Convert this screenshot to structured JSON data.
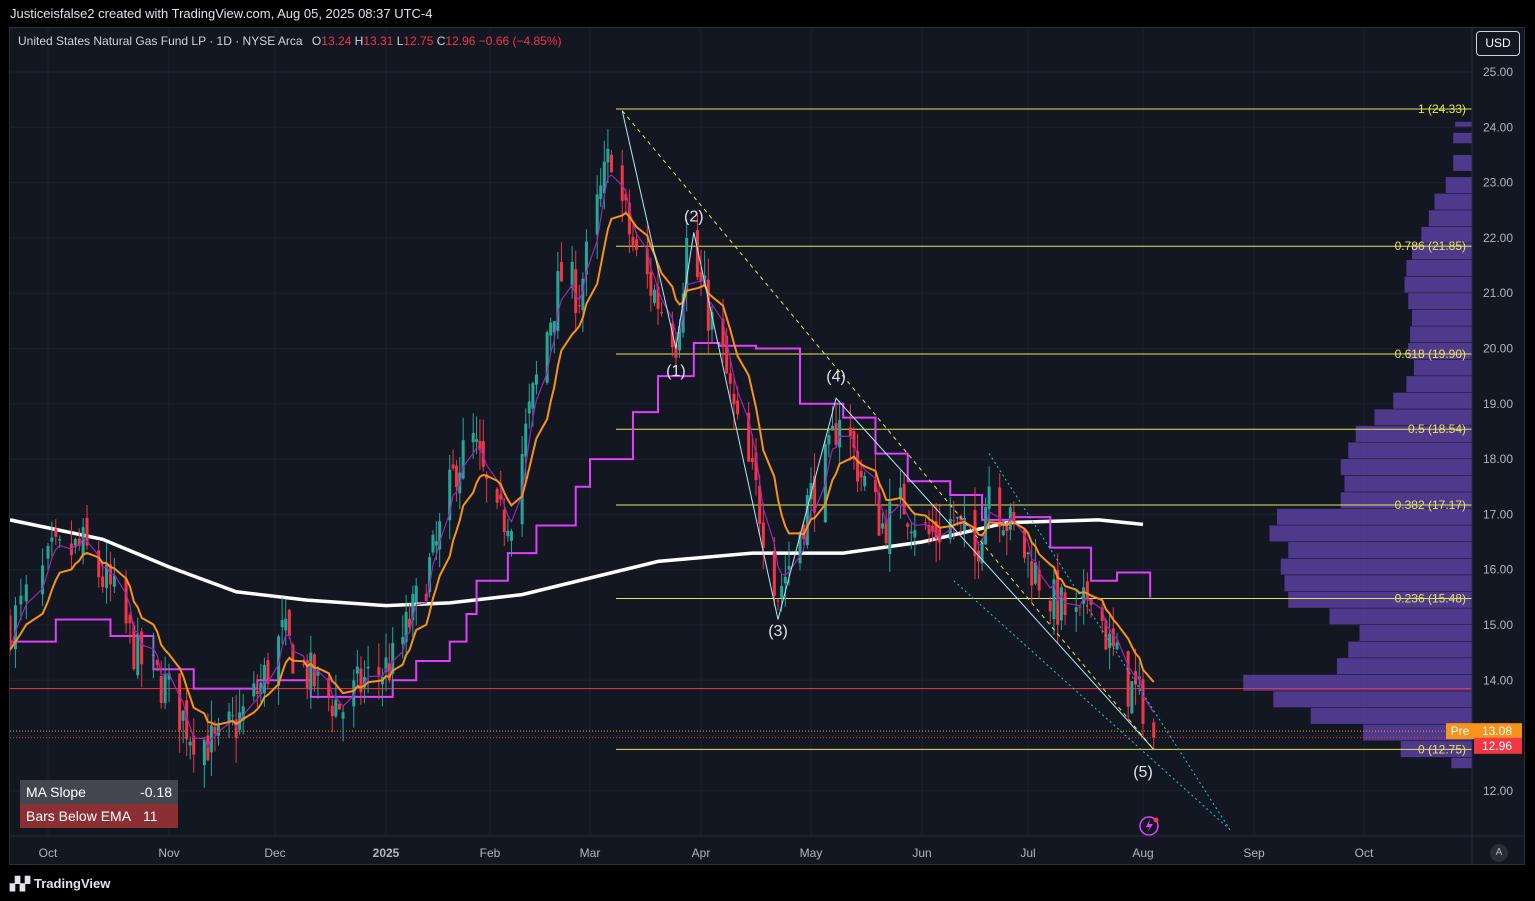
{
  "header": {
    "text": "Justiceisfalse2 created with TradingView.com, Aug 05, 2025 08:37 UTC-4"
  },
  "legend": {
    "symbol": "United States Natural Gas Fund LP · 1D · NYSE Arca",
    "o_label": "O",
    "o": "13.24",
    "h_label": "H",
    "h": "13.31",
    "l_label": "L",
    "l": "12.75",
    "c_label": "C",
    "c": "12.96",
    "change": "−0.66 (−4.85%)"
  },
  "currency_button": "USD",
  "footer": {
    "brand": "TradingView"
  },
  "auto_button": "A",
  "stats": {
    "ma_slope_label": "MA Slope",
    "ma_slope": "-0.18",
    "bars_below_label": "Bars Below EMA",
    "bars_below": "11"
  },
  "colors": {
    "background": "#131722",
    "up": "#26a69a",
    "down": "#f23645",
    "ema": "#f7931a",
    "ma200": "#ffffff",
    "step": "#e040fb",
    "fib": "#e6e35a",
    "volume_profile": "#5b3fa0",
    "support": "#f23645"
  },
  "chart_data": {
    "type": "candlestick",
    "price_axis": {
      "ticks": [
        "25.00",
        "24.00",
        "23.00",
        "22.00",
        "21.00",
        "20.00",
        "19.00",
        "18.00",
        "17.00",
        "16.00",
        "15.00",
        "14.00",
        "13.00",
        "12.00"
      ],
      "range": [
        11.2,
        25.8
      ]
    },
    "time_axis": {
      "ticks": [
        "Oct",
        "Nov",
        "Dec",
        "2025",
        "Feb",
        "Mar",
        "Apr",
        "May",
        "Jun",
        "Jul",
        "Aug",
        "Sep",
        "Oct"
      ]
    },
    "price_labels": [
      {
        "label": "Pre",
        "value": "13.08",
        "color": "#f7931a"
      },
      {
        "label": "",
        "value": "12.96",
        "color": "#f23645"
      }
    ],
    "fib_levels": [
      {
        "ratio": "1",
        "price": 24.33,
        "text": "1 (24.33)"
      },
      {
        "ratio": "0.786",
        "price": 21.85,
        "text": "0.786 (21.85)"
      },
      {
        "ratio": "0.618",
        "price": 19.9,
        "text": "0.618 (19.90)"
      },
      {
        "ratio": "0.5",
        "price": 18.54,
        "text": "0.5 (18.54)"
      },
      {
        "ratio": "0.382",
        "price": 17.17,
        "text": "0.382 (17.17)"
      },
      {
        "ratio": "0.236",
        "price": 15.48,
        "text": "0.236 (15.48)"
      },
      {
        "ratio": "0",
        "price": 12.75,
        "text": "0 (12.75)"
      }
    ],
    "wave_labels": [
      {
        "text": "(1)",
        "date": "2025-03-25",
        "price": 19.5
      },
      {
        "text": "(2)",
        "date": "2025-03-30",
        "price": 22.3
      },
      {
        "text": "(3)",
        "date": "2025-04-22",
        "price": 14.8
      },
      {
        "text": "(4)",
        "date": "2025-05-08",
        "price": 19.4
      },
      {
        "text": "(5)",
        "date": "2025-08-01",
        "price": 12.25
      }
    ],
    "support_line": 13.85
  }
}
